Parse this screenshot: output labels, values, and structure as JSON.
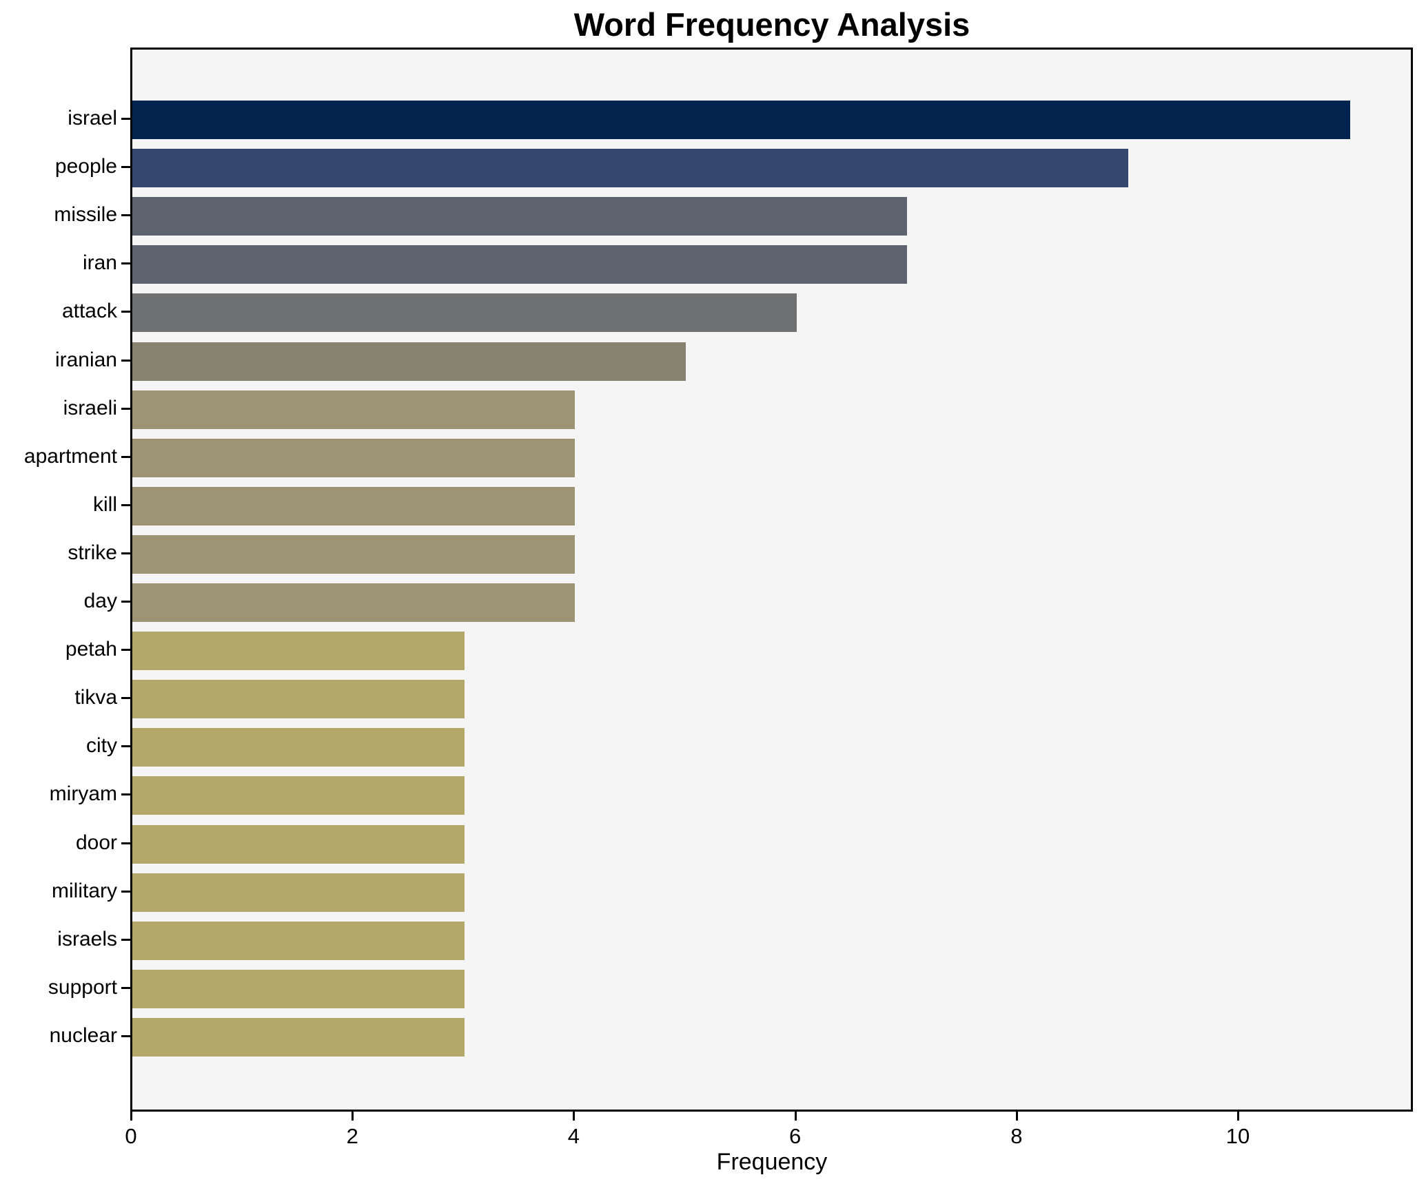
{
  "chart_data": {
    "type": "bar",
    "orientation": "horizontal",
    "title": "Word Frequency Analysis",
    "xlabel": "Frequency",
    "ylabel": "",
    "categories": [
      "israel",
      "people",
      "missile",
      "iran",
      "attack",
      "iranian",
      "israeli",
      "apartment",
      "kill",
      "strike",
      "day",
      "petah",
      "tikva",
      "city",
      "miryam",
      "door",
      "military",
      "israels",
      "support",
      "nuclear"
    ],
    "values": [
      11,
      9,
      7,
      7,
      6,
      5,
      4,
      4,
      4,
      4,
      4,
      3,
      3,
      3,
      3,
      3,
      3,
      3,
      3,
      3
    ],
    "colors": [
      "#02234e",
      "#35466f",
      "#5d626f",
      "#5d626f",
      "#6f7072",
      "#87826f",
      "#9c9472",
      "#9c9472",
      "#9c9472",
      "#9c9472",
      "#9c9472",
      "#b3a769",
      "#b3a769",
      "#b3a769",
      "#b3a769",
      "#b3a769",
      "#b3a769",
      "#b3a769",
      "#b3a769",
      "#b3a769"
    ],
    "xticks": [
      0,
      2,
      4,
      6,
      8,
      10
    ],
    "xlim": [
      0,
      11.55
    ],
    "grid": false,
    "legend_position": "none",
    "plot_background": "#f5f5f6",
    "figure_background": "#ffffff",
    "spine_color": "#000000"
  }
}
